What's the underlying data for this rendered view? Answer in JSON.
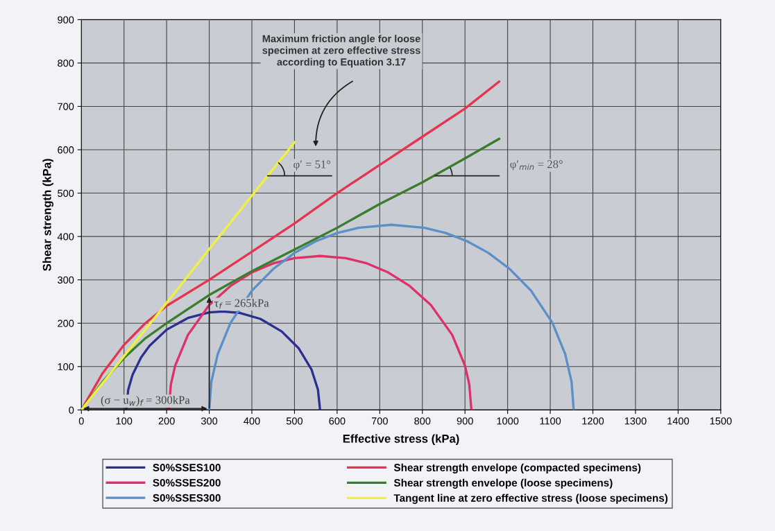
{
  "chart_data": {
    "type": "line",
    "xlabel": "Effective stress (kPa)",
    "ylabel": "Shear strength (kPa)",
    "xlim": [
      0,
      1500
    ],
    "xticks": [
      0,
      100,
      200,
      300,
      400,
      500,
      600,
      700,
      800,
      900,
      1000,
      1100,
      1200,
      1300,
      1400,
      1500
    ],
    "ylim": [
      0,
      900
    ],
    "yticks": [
      0,
      100,
      200,
      300,
      400,
      500,
      600,
      700,
      800,
      900
    ],
    "grid": true,
    "legend": "bottom",
    "series": [
      {
        "name": "S0%SSES100",
        "color": "#2b2f8f",
        "x": [
          105,
          110,
          120,
          140,
          160,
          200,
          250,
          300,
          332,
          370,
          420,
          470,
          510,
          540,
          555,
          560
        ],
        "values": [
          0,
          47,
          81,
          121,
          148,
          185,
          212,
          225,
          227,
          224,
          210,
          181,
          142,
          93,
          47,
          0
        ]
      },
      {
        "name": "S0%SSES200",
        "color": "#e0306a",
        "x": [
          205,
          210,
          220,
          250,
          300,
          350,
          400,
          450,
          500,
          560,
          620,
          670,
          720,
          770,
          820,
          870,
          900,
          910,
          915
        ],
        "values": [
          0,
          59,
          102,
          173,
          242,
          286,
          317,
          338,
          350,
          355,
          350,
          338,
          317,
          286,
          242,
          173,
          102,
          59,
          0
        ]
      },
      {
        "name": "S0%SSES300",
        "color": "#5a8fc8",
        "x": [
          300,
          305,
          320,
          350,
          400,
          450,
          500,
          550,
          600,
          650,
          727,
          805,
          855,
          905,
          955,
          1005,
          1055,
          1105,
          1135,
          1150,
          1155
        ],
        "values": [
          0,
          65,
          129,
          201,
          275,
          325,
          362,
          389,
          408,
          420,
          427,
          420,
          408,
          389,
          362,
          325,
          275,
          201,
          129,
          65,
          0
        ]
      },
      {
        "name": "Shear strength envelope (compacted specimens)",
        "color": "#e8334f",
        "x": [
          0,
          50,
          100,
          150,
          200,
          300,
          400,
          500,
          600,
          700,
          800,
          900,
          980
        ],
        "values": [
          0,
          85,
          150,
          200,
          240,
          300,
          365,
          430,
          500,
          565,
          630,
          695,
          757
        ]
      },
      {
        "name": "Shear strength envelope (loose specimens)",
        "color": "#3a7d2c",
        "x": [
          0,
          50,
          100,
          150,
          200,
          300,
          400,
          500,
          600,
          700,
          800,
          900,
          980
        ],
        "values": [
          0,
          65,
          120,
          165,
          200,
          265,
          320,
          370,
          420,
          475,
          525,
          580,
          625
        ]
      },
      {
        "name": "Tangent line at zero effective stress (loose specimens)",
        "color": "#f0f040",
        "x": [
          0,
          100,
          200,
          300,
          400,
          500
        ],
        "values": [
          0,
          124,
          247,
          371,
          494,
          617
        ]
      }
    ],
    "annotations": [
      "Maximum friction angle for loose\nspecimen at zero effective stress\naccording to Equation 3.17",
      {
        "text": "φ′ = 51°",
        "x": 437,
        "y": 540
      },
      {
        "text": "φ′$_{min}$ = 28°",
        "x": 830,
        "y": 540
      },
      {
        "text": "τ$_{f}$ = 265kPa",
        "x": 300,
        "y": 265
      },
      {
        "text": "(σ − u$_{w}$)$_{f}$ = 300kPa",
        "x": 300,
        "y": 0
      }
    ]
  }
}
